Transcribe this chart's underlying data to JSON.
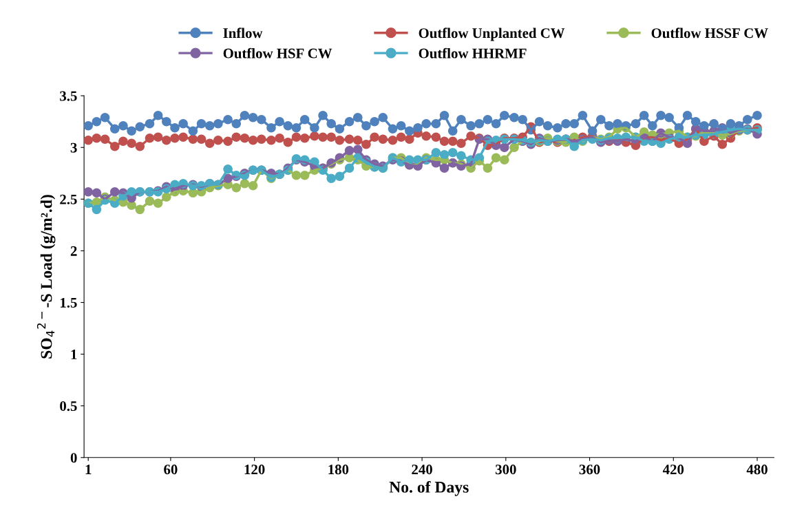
{
  "chart_data": {
    "type": "line",
    "xlabel": "No. of Days",
    "ylabel": "SO$_{4}$$^{2−}$-S Load (g/m².d)",
    "x": [
      1,
      7,
      13,
      20,
      26,
      32,
      38,
      45,
      51,
      57,
      63,
      69,
      76,
      82,
      88,
      94,
      101,
      107,
      113,
      119,
      125,
      132,
      138,
      144,
      150,
      156,
      163,
      169,
      175,
      181,
      188,
      194,
      200,
      206,
      212,
      219,
      225,
      231,
      237,
      243,
      250,
      256,
      262,
      268,
      275,
      281,
      287,
      293,
      299,
      306,
      312,
      318,
      324,
      330,
      337,
      343,
      349,
      355,
      362,
      368,
      374,
      380,
      386,
      393,
      399,
      405,
      411,
      417,
      424,
      430,
      436,
      442,
      449,
      455,
      461,
      467,
      473,
      480
    ],
    "xlim": [
      -2,
      492
    ],
    "xticks": [
      1,
      60,
      120,
      180,
      240,
      300,
      360,
      420,
      480
    ],
    "ylim": [
      0,
      3.5
    ],
    "yticks": [
      0,
      0.5,
      1,
      1.5,
      2,
      2.5,
      3,
      3.5
    ],
    "grid": false,
    "legend": "top",
    "marker": "circle",
    "line_style": "solid",
    "series": [
      {
        "name": "Inflow",
        "color": "#4f81bd",
        "values": [
          3.21,
          3.25,
          3.29,
          3.18,
          3.21,
          3.16,
          3.2,
          3.23,
          3.31,
          3.25,
          3.19,
          3.23,
          3.16,
          3.23,
          3.21,
          3.23,
          3.27,
          3.23,
          3.31,
          3.29,
          3.27,
          3.19,
          3.25,
          3.21,
          3.19,
          3.27,
          3.19,
          3.31,
          3.23,
          3.18,
          3.25,
          3.29,
          3.21,
          3.25,
          3.29,
          3.18,
          3.21,
          3.16,
          3.19,
          3.23,
          3.23,
          3.31,
          3.16,
          3.27,
          3.21,
          3.23,
          3.27,
          3.23,
          3.31,
          3.29,
          3.27,
          3.17,
          3.25,
          3.21,
          3.19,
          3.23,
          3.23,
          3.31,
          3.16,
          3.27,
          3.21,
          3.23,
          3.21,
          3.23,
          3.31,
          3.21,
          3.31,
          3.29,
          3.19,
          3.31,
          3.25,
          3.21,
          3.23,
          3.18,
          3.23,
          3.21,
          3.27,
          3.31
        ]
      },
      {
        "name": "Outflow Unplanted CW",
        "color": "#c0504d",
        "values": [
          3.07,
          3.09,
          3.08,
          3.01,
          3.06,
          3.04,
          3.01,
          3.09,
          3.1,
          3.07,
          3.09,
          3.1,
          3.08,
          3.08,
          3.04,
          3.07,
          3.06,
          3.1,
          3.09,
          3.07,
          3.08,
          3.07,
          3.09,
          3.05,
          3.1,
          3.09,
          3.11,
          3.1,
          3.1,
          3.07,
          3.08,
          3.07,
          3.03,
          3.1,
          3.08,
          3.07,
          3.1,
          3.08,
          3.14,
          3.11,
          3.1,
          3.06,
          3.06,
          3.04,
          3.11,
          3.09,
          3.02,
          3.03,
          3.09,
          3.09,
          3.1,
          3.2,
          3.05,
          3.07,
          3.05,
          3.08,
          3.07,
          3.1,
          3.11,
          3.07,
          3.06,
          3.08,
          3.05,
          3.02,
          3.09,
          3.1,
          3.07,
          3.09,
          3.04,
          3.08,
          3.18,
          3.06,
          3.11,
          3.03,
          3.09,
          3.17,
          3.17,
          3.19
        ]
      },
      {
        "name": "Outflow HSSF CW",
        "color": "#9bbb59",
        "values": [
          2.46,
          2.47,
          2.52,
          2.49,
          2.47,
          2.44,
          2.4,
          2.48,
          2.46,
          2.52,
          2.57,
          2.58,
          2.56,
          2.57,
          2.61,
          2.63,
          2.64,
          2.61,
          2.65,
          2.63,
          2.78,
          2.7,
          2.74,
          2.78,
          2.73,
          2.73,
          2.78,
          2.8,
          2.84,
          2.88,
          2.9,
          2.88,
          2.82,
          2.81,
          2.8,
          2.9,
          2.9,
          2.83,
          2.83,
          2.9,
          2.88,
          2.88,
          2.85,
          2.84,
          2.8,
          2.87,
          2.8,
          2.9,
          2.88,
          3.0,
          3.06,
          3.05,
          3.06,
          3.09,
          3.06,
          3.05,
          3.1,
          3.06,
          3.1,
          3.08,
          3.1,
          3.18,
          3.19,
          3.1,
          3.15,
          3.12,
          3.13,
          3.14,
          3.16,
          3.1,
          3.11,
          3.15,
          3.14,
          3.12,
          3.13,
          3.16,
          3.17,
          3.17
        ]
      },
      {
        "name": "Outflow HSF CW",
        "color": "#8064a2",
        "values": [
          2.57,
          2.56,
          2.5,
          2.57,
          2.56,
          2.51,
          2.57,
          2.57,
          2.58,
          2.62,
          2.6,
          2.63,
          2.64,
          2.62,
          2.65,
          2.64,
          2.7,
          2.72,
          2.75,
          2.78,
          2.78,
          2.75,
          2.74,
          2.8,
          2.88,
          2.86,
          2.82,
          2.8,
          2.85,
          2.9,
          2.97,
          2.98,
          2.88,
          2.84,
          2.82,
          2.88,
          2.87,
          2.83,
          2.82,
          2.88,
          2.85,
          2.8,
          2.85,
          2.82,
          2.84,
          3.08,
          3.08,
          3.02,
          3.0,
          3.08,
          3.06,
          3.03,
          3.09,
          3.06,
          3.07,
          3.08,
          3.06,
          3.08,
          3.1,
          3.05,
          3.07,
          3.06,
          3.08,
          3.06,
          3.1,
          3.06,
          3.14,
          3.1,
          3.09,
          3.04,
          3.18,
          3.16,
          3.16,
          3.19,
          3.14,
          3.17,
          3.18,
          3.13
        ]
      },
      {
        "name": "Outflow HHRMF",
        "color": "#4bacc6",
        "values": [
          2.46,
          2.4,
          2.49,
          2.46,
          2.53,
          2.57,
          2.57,
          2.57,
          2.57,
          2.6,
          2.64,
          2.65,
          2.63,
          2.63,
          2.65,
          2.64,
          2.79,
          2.73,
          2.73,
          2.78,
          2.78,
          2.71,
          2.74,
          2.78,
          2.89,
          2.88,
          2.86,
          2.78,
          2.7,
          2.72,
          2.8,
          2.9,
          2.86,
          2.81,
          2.8,
          2.9,
          2.86,
          2.88,
          2.88,
          2.88,
          2.95,
          2.93,
          2.95,
          2.92,
          2.88,
          2.9,
          3.06,
          3.07,
          3.08,
          3.08,
          3.07,
          3.05,
          3.07,
          3.06,
          3.08,
          3.08,
          3.01,
          3.07,
          3.08,
          3.07,
          3.09,
          3.09,
          3.1,
          3.1,
          3.06,
          3.06,
          3.04,
          3.08,
          3.1,
          3.1,
          3.12,
          3.12,
          3.13,
          3.15,
          3.17,
          3.18,
          3.17,
          3.17
        ]
      }
    ]
  }
}
